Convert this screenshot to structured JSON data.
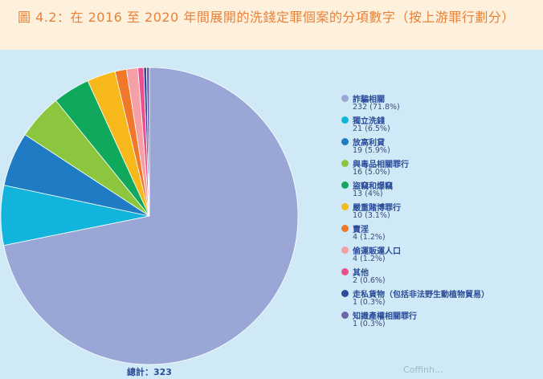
{
  "header": {
    "title": "圖 4.2：在 2016 至 2020 年間展開的洗錢定罪個案的分項數字（按上游罪行劃分）"
  },
  "chart_data": {
    "type": "pie",
    "title": "",
    "total_label": "總計：323",
    "slices": [
      {
        "name": "詐騙相關",
        "value": 232,
        "label": "232 (71.8%)",
        "color": "#9aa6d6"
      },
      {
        "name": "獨立洗錢",
        "value": 21,
        "label": "21 (6.5%)",
        "color": "#12b4dc"
      },
      {
        "name": "放高利貸",
        "value": 19,
        "label": "19 (5.9%)",
        "color": "#1f7cc4"
      },
      {
        "name": "與毒品相關罪行",
        "value": 16,
        "label": "16 (5.0%)",
        "color": "#8cc63f"
      },
      {
        "name": "盜竊和爆竊",
        "value": 13,
        "label": "13 (4%)",
        "color": "#10a85c"
      },
      {
        "name": "嚴重賭博罪行",
        "value": 10,
        "label": "10 (3.1%)",
        "color": "#f6b81a"
      },
      {
        "name": "賣淫",
        "value": 4,
        "label": "4 (1.2%)",
        "color": "#f0782a"
      },
      {
        "name": "偷運販運人口",
        "value": 4,
        "label": "4 (1.2%)",
        "color": "#f4a0a6"
      },
      {
        "name": "其他",
        "value": 2,
        "label": "2 (0.6%)",
        "color": "#ec4f8e"
      },
      {
        "name": "走私貨物（包括非法野生動植物貿易）",
        "value": 1,
        "label": "1 (0.3%)",
        "color": "#2e4a9e"
      },
      {
        "name": "知識產權相關罪行",
        "value": 1,
        "label": "1 (0.3%)",
        "color": "#6e64a8"
      }
    ]
  },
  "watermark": {
    "text": "Coffinh…"
  }
}
